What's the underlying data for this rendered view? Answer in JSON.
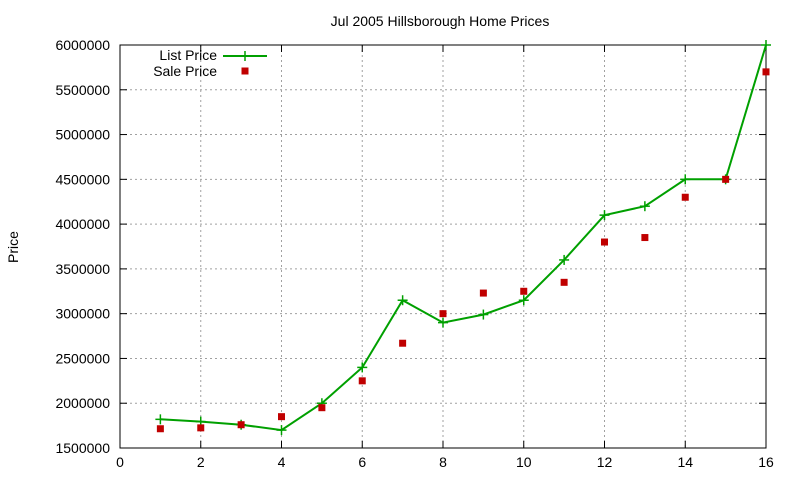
{
  "chart_data": {
    "type": "line",
    "title": "Jul 2005 Hillsborough Home Prices",
    "xlabel": "",
    "ylabel": "Price",
    "xlim": [
      0,
      16
    ],
    "ylim": [
      1500000,
      6000000
    ],
    "xticks": [
      "0",
      "2",
      "4",
      "6",
      "8",
      "10",
      "12",
      "14",
      "16"
    ],
    "yticks": [
      "1500000",
      "2000000",
      "2500000",
      "3000000",
      "3500000",
      "4000000",
      "4500000",
      "5000000",
      "5500000",
      "6000000"
    ],
    "grid": true,
    "legend_position": "top-left",
    "series": [
      {
        "name": "List Price",
        "style": "line-with-plus-markers",
        "color": "#00a000",
        "x": [
          1,
          2,
          3,
          4,
          5,
          6,
          7,
          8,
          9,
          10,
          11,
          12,
          13,
          14,
          15,
          16
        ],
        "values": [
          1820000,
          1795000,
          1760000,
          1700000,
          2000000,
          2400000,
          3150000,
          2900000,
          2990000,
          3150000,
          3600000,
          4100000,
          4200000,
          4500000,
          4500000,
          6000000
        ]
      },
      {
        "name": "Sale Price",
        "style": "square-markers",
        "color": "#c00000",
        "x": [
          1,
          2,
          3,
          4,
          5,
          6,
          7,
          8,
          9,
          10,
          11,
          12,
          13,
          14,
          15,
          16
        ],
        "values": [
          1715000,
          1725000,
          1760000,
          1850000,
          1950000,
          2250000,
          2670000,
          3000000,
          3230000,
          3250000,
          3350000,
          3800000,
          3850000,
          4300000,
          4500000,
          5700000
        ]
      }
    ]
  }
}
